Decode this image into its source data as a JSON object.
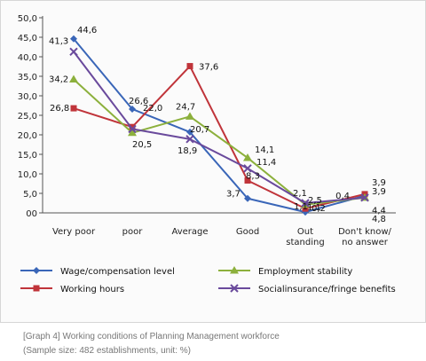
{
  "caption": {
    "line1": "[Graph 4] Working conditions of Planning Management workforce",
    "line2": "(Sample size: 482 establishments, unit: %)"
  },
  "chart_data": {
    "type": "line",
    "categories": [
      [
        "Very poor"
      ],
      [
        "poor"
      ],
      [
        "Average"
      ],
      [
        "Good"
      ],
      [
        "Out",
        "standing"
      ],
      [
        "Don't know/",
        "no answer"
      ]
    ],
    "y_ticks": [
      "50,0",
      "45,0",
      "40,0",
      "35,0",
      "30,0",
      "25,0",
      "20,0",
      "15,0",
      "10,0",
      "5,0",
      "00"
    ],
    "ylim": [
      0,
      50
    ],
    "grid": false,
    "legend_position": "bottom",
    "series": [
      {
        "name": "Wage/compensation level",
        "color": "#3a66b8",
        "marker": "diamond",
        "values": [
          44.6,
          26.6,
          20.7,
          3.7,
          0.2,
          4.4
        ],
        "labels": [
          "44,6",
          "26,6",
          "20,7",
          "3,7",
          "0,2",
          "4,4"
        ]
      },
      {
        "name": "Working hours",
        "color": "#c0343a",
        "marker": "square",
        "values": [
          26.8,
          22.0,
          37.6,
          8.3,
          1.1,
          4.8
        ],
        "labels": [
          "26,8",
          "22,0",
          "37,6",
          "8,3",
          "1,1",
          "4,8"
        ]
      },
      {
        "name": "Employment stability",
        "color": "#8cb03c",
        "marker": "triangle",
        "values": [
          34.2,
          20.5,
          24.7,
          14.1,
          2.1,
          3.9
        ],
        "labels": [
          "34,2",
          "20,5",
          "24,7",
          "14,1",
          "2,1",
          "3,9"
        ]
      },
      {
        "name": "Socialinsurance/fringe benefits",
        "color": "#6a4a9c",
        "marker": "x",
        "values": [
          41.3,
          21.5,
          18.9,
          11.4,
          2.5,
          3.9
        ],
        "labels": [
          "41,3",
          "",
          "18,9",
          "11,4",
          "2,5",
          "3,9"
        ]
      }
    ],
    "extra_labels": [
      "0,4",
      "1,1"
    ]
  }
}
